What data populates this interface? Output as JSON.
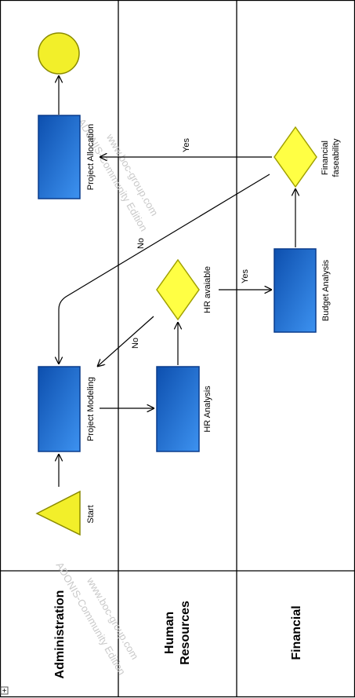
{
  "lanes": [
    {
      "label": "Administration"
    },
    {
      "label": "Human\nResources"
    },
    {
      "label": "Financial"
    }
  ],
  "nodes": {
    "start": "Start",
    "project_modeling": "Project Modeling",
    "project_allocation": "Project Allocation",
    "hr_analysis": "HR Analysis",
    "hr_available": "HR avaiable",
    "budget_analysis": "Budget Analysis",
    "financial_feasibility": "Financial\nfaseability"
  },
  "edges": {
    "yes_financial": "Yes",
    "no_financial": "No",
    "yes_hr": "Yes",
    "no_hr": "No"
  },
  "watermarks": {
    "w1": "www.boc-group.com",
    "w2": "ADONIS-Community Edition"
  },
  "corner_toggle": "+",
  "colors": {
    "task_fill": "#1e64c8",
    "task_border": "#0a3c8c",
    "decision_fill": "#ffff44",
    "decision_border": "#a0a000",
    "lane_border": "#000000"
  }
}
